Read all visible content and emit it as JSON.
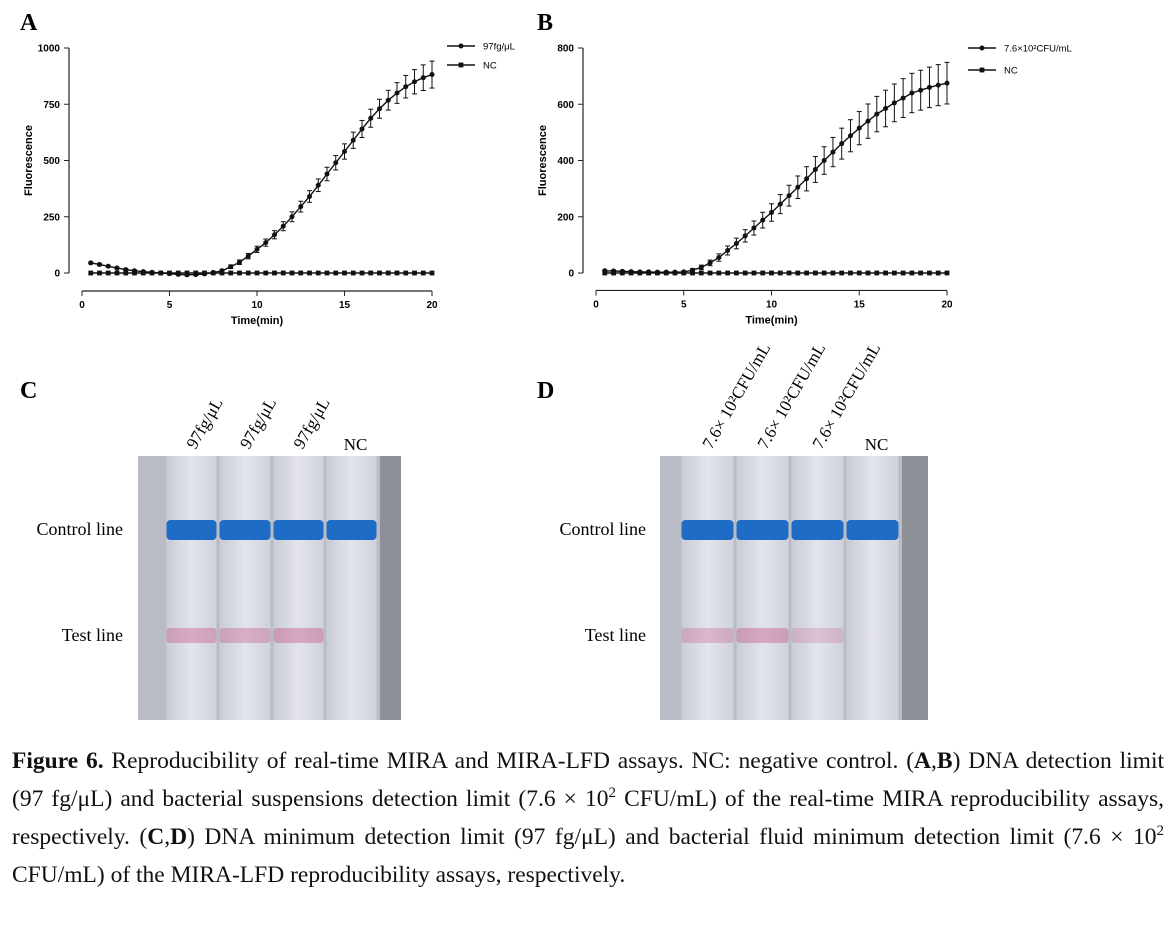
{
  "chart_data": [
    {
      "type": "line",
      "title": "A",
      "x_label": "Time(min)",
      "y_label": "Fluorescence",
      "x": [
        0.5,
        1,
        1.5,
        2,
        2.5,
        3,
        3.5,
        4,
        4.5,
        5,
        5.5,
        6,
        6.5,
        7,
        7.5,
        8,
        8.5,
        9,
        9.5,
        10,
        10.5,
        11,
        11.5,
        12,
        12.5,
        13,
        13.5,
        14,
        14.5,
        15,
        15.5,
        16,
        16.5,
        17,
        17.5,
        18,
        18.5,
        19,
        19.5,
        20
      ],
      "series": [
        {
          "name": "97fg/μL",
          "color": "#111111",
          "marker": "circle",
          "values": [
            45,
            38,
            30,
            22,
            15,
            10,
            6,
            3,
            0,
            -3,
            -6,
            -8,
            -7,
            -4,
            2,
            10,
            28,
            48,
            75,
            105,
            135,
            170,
            208,
            250,
            295,
            340,
            390,
            440,
            490,
            540,
            590,
            640,
            688,
            730,
            768,
            800,
            828,
            850,
            868,
            882
          ],
          "errors": [
            4,
            4,
            4,
            4,
            4,
            4,
            4,
            4,
            4,
            4,
            4,
            4,
            4,
            4,
            4,
            6,
            8,
            10,
            12,
            14,
            16,
            18,
            20,
            22,
            24,
            26,
            28,
            30,
            32,
            34,
            36,
            38,
            40,
            42,
            44,
            46,
            50,
            54,
            57,
            60
          ]
        },
        {
          "name": "NC",
          "color": "#111111",
          "marker": "square",
          "values": [
            0,
            0,
            0,
            0,
            0,
            0,
            0,
            0,
            0,
            0,
            0,
            0,
            0,
            0,
            0,
            0,
            0,
            0,
            0,
            0,
            0,
            0,
            0,
            0,
            0,
            0,
            0,
            0,
            0,
            0,
            0,
            0,
            0,
            0,
            0,
            0,
            0,
            0,
            0,
            0
          ]
        }
      ],
      "xlim": [
        0,
        20
      ],
      "xticks": [
        0,
        5,
        10,
        15,
        20
      ],
      "ylim": [
        -40,
        1000
      ],
      "yticks": [
        0,
        250,
        500,
        750,
        1000
      ]
    },
    {
      "type": "line",
      "title": "B",
      "x_label": "Time(min)",
      "y_label": "Fluorescence",
      "x": [
        0.5,
        1,
        1.5,
        2,
        2.5,
        3,
        3.5,
        4,
        4.5,
        5,
        5.5,
        6,
        6.5,
        7,
        7.5,
        8,
        8.5,
        9,
        9.5,
        10,
        10.5,
        11,
        11.5,
        12,
        12.5,
        13,
        13.5,
        14,
        14.5,
        15,
        15.5,
        16,
        16.5,
        17,
        17.5,
        18,
        18.5,
        19,
        19.5,
        20
      ],
      "series": [
        {
          "name": "7.6×10²CFU/mL",
          "color": "#111111",
          "marker": "circle",
          "values": [
            8,
            7,
            6,
            5,
            4,
            4,
            3,
            3,
            3,
            4,
            10,
            20,
            36,
            55,
            80,
            105,
            132,
            160,
            188,
            215,
            245,
            275,
            305,
            335,
            368,
            400,
            430,
            460,
            488,
            515,
            540,
            565,
            585,
            605,
            622,
            640,
            650,
            660,
            668,
            675
          ],
          "errors": [
            3,
            3,
            3,
            3,
            3,
            3,
            3,
            3,
            3,
            3,
            6,
            8,
            10,
            13,
            16,
            19,
            22,
            25,
            28,
            31,
            34,
            37,
            40,
            43,
            46,
            49,
            52,
            55,
            57,
            59,
            61,
            63,
            65,
            67,
            69,
            70,
            71,
            72,
            73,
            74
          ]
        },
        {
          "name": "NC",
          "color": "#111111",
          "marker": "square",
          "values": [
            0,
            0,
            0,
            0,
            0,
            0,
            0,
            0,
            0,
            0,
            0,
            0,
            0,
            0,
            0,
            0,
            0,
            0,
            0,
            0,
            0,
            0,
            0,
            0,
            0,
            0,
            0,
            0,
            0,
            0,
            0,
            0,
            0,
            0,
            0,
            0,
            0,
            0,
            0,
            0
          ]
        }
      ],
      "xlim": [
        0,
        20
      ],
      "xticks": [
        0,
        5,
        10,
        15,
        20
      ],
      "ylim": [
        -30,
        800
      ],
      "yticks": [
        0,
        200,
        400,
        600,
        800
      ]
    }
  ],
  "photos": [
    {
      "panel": "C",
      "lanes": [
        "97fg/μL",
        "97fg/μL",
        "97fg/μL",
        "NC"
      ],
      "control_label": "Control line",
      "test_label": "Test line"
    },
    {
      "panel": "D",
      "lanes": [
        "7.6× 10²CFU/mL",
        "7.6× 10²CFU/mL",
        "7.6× 10²CFU/mL",
        "NC"
      ],
      "control_label": "Control line",
      "test_label": "Test line"
    }
  ],
  "caption": [
    {
      "text": "Figure 6.",
      "bold": true
    },
    {
      "text": " Reproducibility of real-time MIRA and MIRA-LFD assays. NC: negative control. ("
    },
    {
      "text": "A",
      "bold": true
    },
    {
      "text": ","
    },
    {
      "text": "B",
      "bold": true
    },
    {
      "text": ") DNA detection limit (97 fg/μL) and bacterial suspensions detection limit (7.6 × 10"
    },
    {
      "text": "2",
      "sup": true
    },
    {
      "text": " CFU/mL) of the real-time MIRA reproducibility assays, respectively. ("
    },
    {
      "text": "C",
      "bold": true
    },
    {
      "text": ","
    },
    {
      "text": "D",
      "bold": true
    },
    {
      "text": ") DNA minimum detection limit (97 fg/μL) and bacterial fluid minimum detection limit (7.6 × 10"
    },
    {
      "text": "2",
      "sup": true
    },
    {
      "text": " CFU/mL) of the MIRA-LFD reproducibility assays, respectively."
    }
  ]
}
